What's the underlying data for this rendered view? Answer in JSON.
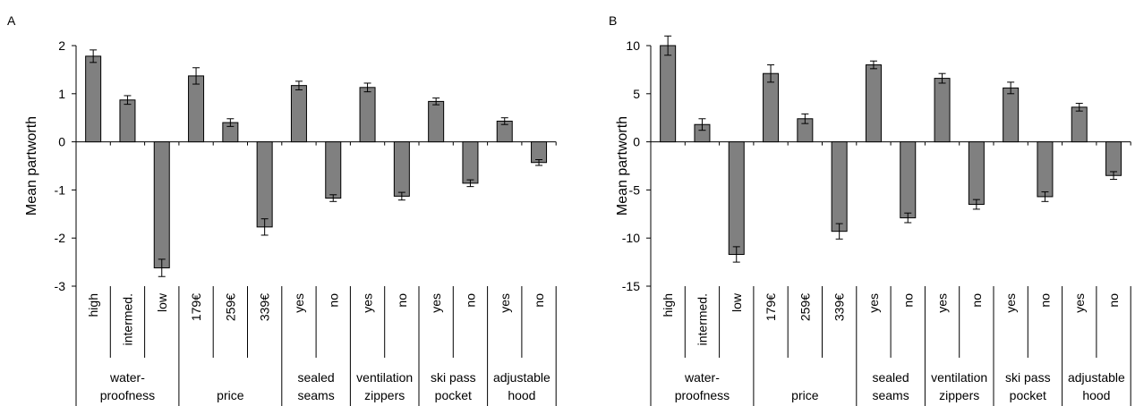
{
  "colors": {
    "bar": "#808080",
    "axis": "#000000",
    "background": "#ffffff"
  },
  "chart_data": [
    {
      "type": "bar",
      "panel_label": "A",
      "ylabel": "Mean partworth",
      "ylim": [
        -3,
        2
      ],
      "yticks": [
        2,
        1,
        0,
        -1,
        -2,
        -3
      ],
      "ytick_labels": [
        "2",
        "1",
        "0",
        "-1",
        "-2",
        "-3"
      ],
      "grid": false,
      "categories": [
        "high",
        "intermed.",
        "low",
        "179€",
        "259€",
        "339€",
        "yes",
        "no",
        "yes",
        "no",
        "yes",
        "no",
        "yes",
        "no"
      ],
      "values": [
        1.78,
        0.87,
        -2.62,
        1.37,
        0.4,
        -1.77,
        1.17,
        -1.17,
        1.13,
        -1.13,
        0.84,
        -0.86,
        0.43,
        -0.43
      ],
      "errors": [
        0.13,
        0.09,
        0.18,
        0.17,
        0.08,
        0.17,
        0.09,
        0.07,
        0.09,
        0.08,
        0.07,
        0.07,
        0.07,
        0.06
      ],
      "groups": [
        {
          "line1": "water-",
          "line2": "proofness",
          "start": 0,
          "count": 3
        },
        {
          "line1": "",
          "line2": "price",
          "start": 3,
          "count": 3
        },
        {
          "line1": "sealed",
          "line2": "seams",
          "start": 6,
          "count": 2
        },
        {
          "line1": "ventilation",
          "line2": "zippers",
          "start": 8,
          "count": 2
        },
        {
          "line1": "ski pass",
          "line2": "pocket",
          "start": 10,
          "count": 2
        },
        {
          "line1": "adjustable",
          "line2": "hood",
          "start": 12,
          "count": 2
        }
      ]
    },
    {
      "type": "bar",
      "panel_label": "B",
      "ylabel": "Mean partworth",
      "ylim": [
        -15,
        10
      ],
      "yticks": [
        10,
        5,
        0,
        -5,
        -10,
        -15
      ],
      "ytick_labels": [
        "10",
        "5",
        "0",
        "-5",
        "-10",
        "-15"
      ],
      "grid": false,
      "categories": [
        "high",
        "intermed.",
        "low",
        "179€",
        "259€",
        "339€",
        "yes",
        "no",
        "yes",
        "no",
        "yes",
        "no",
        "yes",
        "no"
      ],
      "values": [
        10.0,
        1.8,
        -11.7,
        7.1,
        2.4,
        -9.3,
        8.0,
        -7.9,
        6.6,
        -6.5,
        5.6,
        -5.7,
        3.6,
        -3.5
      ],
      "errors": [
        1.0,
        0.6,
        0.8,
        0.9,
        0.5,
        0.8,
        0.4,
        0.5,
        0.5,
        0.5,
        0.6,
        0.5,
        0.4,
        0.4
      ],
      "groups": [
        {
          "line1": "water-",
          "line2": "proofness",
          "start": 0,
          "count": 3
        },
        {
          "line1": "",
          "line2": "price",
          "start": 3,
          "count": 3
        },
        {
          "line1": "sealed",
          "line2": "seams",
          "start": 6,
          "count": 2
        },
        {
          "line1": "ventilation",
          "line2": "zippers",
          "start": 8,
          "count": 2
        },
        {
          "line1": "ski pass",
          "line2": "pocket",
          "start": 10,
          "count": 2
        },
        {
          "line1": "adjustable",
          "line2": "hood",
          "start": 12,
          "count": 2
        }
      ]
    }
  ]
}
